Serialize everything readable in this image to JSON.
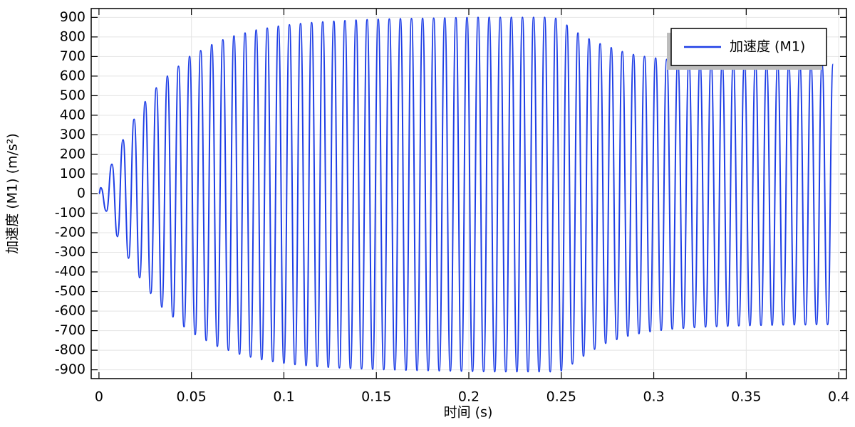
{
  "chart_data": {
    "type": "line",
    "xlabel": "时间 (s)",
    "ylabel": "加速度 (M1) (m/s²)",
    "x": [
      0,
      0.001,
      0.004,
      0.007,
      0.01,
      0.013,
      0.016,
      0.019,
      0.022,
      0.025,
      0.028,
      0.031,
      0.034,
      0.037,
      0.04,
      0.043,
      0.046,
      0.049,
      0.052,
      0.055,
      0.058,
      0.061,
      0.064,
      0.067,
      0.07,
      0.073,
      0.076,
      0.079,
      0.082,
      0.085,
      0.088,
      0.091,
      0.094,
      0.097,
      0.1,
      0.103,
      0.106,
      0.109,
      0.112,
      0.115,
      0.118,
      0.121,
      0.124,
      0.127,
      0.13,
      0.133,
      0.136,
      0.139,
      0.142,
      0.145,
      0.148,
      0.151,
      0.154,
      0.157,
      0.16,
      0.163,
      0.166,
      0.169,
      0.172,
      0.175,
      0.178,
      0.181,
      0.184,
      0.187,
      0.19,
      0.193,
      0.196,
      0.199,
      0.202,
      0.205,
      0.208,
      0.211,
      0.214,
      0.217,
      0.22,
      0.223,
      0.226,
      0.229,
      0.232,
      0.235,
      0.238,
      0.241,
      0.244,
      0.247,
      0.25,
      0.253,
      0.256,
      0.259,
      0.262,
      0.265,
      0.268,
      0.271,
      0.274,
      0.277,
      0.28,
      0.283,
      0.286,
      0.289,
      0.292,
      0.295,
      0.298,
      0.301,
      0.304,
      0.307,
      0.31,
      0.313,
      0.316,
      0.319,
      0.322,
      0.325,
      0.328,
      0.331,
      0.334,
      0.337,
      0.34,
      0.343,
      0.346,
      0.349,
      0.352,
      0.355,
      0.358,
      0.361,
      0.364,
      0.367,
      0.37,
      0.373,
      0.376,
      0.379,
      0.382,
      0.385,
      0.388,
      0.391,
      0.394,
      0.397
    ],
    "series": [
      {
        "name": "加速度 (M1)",
        "color": "#1f3fe6",
        "values": [
          0,
          30,
          -90,
          150,
          -220,
          275,
          -330,
          380,
          -430,
          470,
          -510,
          540,
          -580,
          600,
          -630,
          650,
          -680,
          700,
          -720,
          730,
          -750,
          760,
          -780,
          785,
          -800,
          805,
          -820,
          820,
          -835,
          835,
          -848,
          845,
          -858,
          855,
          -866,
          862,
          -873,
          868,
          -878,
          873,
          -883,
          877,
          -887,
          880,
          -890,
          883,
          -893,
          886,
          -895,
          888,
          -897,
          890,
          -899,
          892,
          -900,
          893,
          -902,
          894,
          -903,
          895,
          -904,
          896,
          -905,
          897,
          -906,
          898,
          -907,
          899,
          -908,
          900,
          -909,
          900,
          -910,
          900,
          -910,
          900,
          -910,
          900,
          -910,
          900,
          -910,
          900,
          -910,
          895,
          -905,
          860,
          -870,
          820,
          -830,
          790,
          -795,
          765,
          -765,
          745,
          -745,
          725,
          -728,
          710,
          -715,
          700,
          -705,
          692,
          -698,
          685,
          -692,
          680,
          -688,
          676,
          -684,
          672,
          -681,
          670,
          -679,
          668,
          -677,
          666,
          -675,
          665,
          -674,
          664,
          -673,
          663,
          -672,
          662,
          -671,
          662,
          -670,
          661,
          -670,
          661,
          -669,
          660,
          -669,
          660
        ]
      }
    ],
    "xlim": [
      -0.0042,
      0.4042
    ],
    "xticks": [
      0,
      0.05,
      0.1,
      0.15,
      0.2,
      0.25,
      0.3,
      0.35,
      0.4
    ],
    "ylim": [
      -945,
      945
    ],
    "yticks": [
      -900,
      -800,
      -700,
      -600,
      -500,
      -400,
      -300,
      -200,
      -100,
      0,
      100,
      200,
      300,
      400,
      500,
      600,
      700,
      800,
      900
    ],
    "grid": true,
    "legend": "upper right"
  }
}
